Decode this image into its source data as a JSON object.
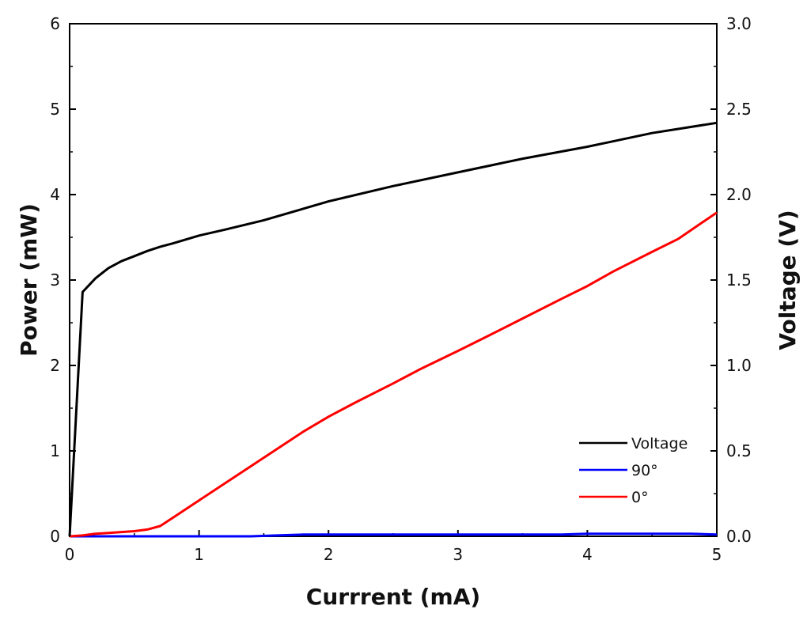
{
  "chart_data": {
    "type": "line",
    "xlabel": "Currrent (mA)",
    "ylabel_left": "Power (mW)",
    "ylabel_right": "Voltage (V)",
    "xlim": [
      0,
      5
    ],
    "ylim_left": [
      0,
      6
    ],
    "ylim_right": [
      0,
      3.0
    ],
    "x_ticks": [
      "0",
      "1",
      "2",
      "3",
      "4",
      "5"
    ],
    "y_left_ticks": [
      "0",
      "1",
      "2",
      "3",
      "4",
      "5",
      "6"
    ],
    "y_right_ticks": [
      "0.0",
      "0.5",
      "1.0",
      "1.5",
      "2.0",
      "2.5",
      "3.0"
    ],
    "grid": false,
    "legend_position": "bottom-right",
    "series": [
      {
        "name": "Voltage",
        "axis": "right",
        "color": "#000000",
        "x": [
          0,
          0.1,
          0.2,
          0.3,
          0.4,
          0.5,
          0.6,
          0.7,
          0.8,
          1.0,
          1.2,
          1.5,
          2.0,
          2.5,
          3.0,
          3.5,
          4.0,
          4.5,
          5.0
        ],
        "y": [
          0.0,
          1.43,
          1.51,
          1.57,
          1.61,
          1.64,
          1.67,
          1.695,
          1.715,
          1.76,
          1.795,
          1.85,
          1.96,
          2.05,
          2.13,
          2.21,
          2.28,
          2.36,
          2.42
        ]
      },
      {
        "name": "90°",
        "axis": "left",
        "color": "#0000ff",
        "x": [
          0,
          0.2,
          0.4,
          0.6,
          0.8,
          1.0,
          1.2,
          1.4,
          1.6,
          1.8,
          2.0,
          2.2,
          2.4,
          2.6,
          2.8,
          3.0,
          3.2,
          3.4,
          3.6,
          3.8,
          4.0,
          4.2,
          4.4,
          4.6,
          4.8,
          5.0
        ],
        "y": [
          0.0,
          0.0,
          0.0,
          0.0,
          0.0,
          0.0,
          0.0,
          0.0,
          0.01,
          0.02,
          0.02,
          0.02,
          0.02,
          0.02,
          0.02,
          0.02,
          0.02,
          0.02,
          0.02,
          0.02,
          0.03,
          0.03,
          0.03,
          0.03,
          0.03,
          0.02
        ]
      },
      {
        "name": "0°",
        "axis": "left",
        "color": "#ff0000",
        "x": [
          0,
          0.1,
          0.2,
          0.3,
          0.4,
          0.5,
          0.6,
          0.7,
          0.8,
          1.0,
          1.2,
          1.5,
          1.8,
          2.0,
          2.2,
          2.5,
          2.7,
          3.0,
          3.2,
          3.5,
          3.8,
          4.0,
          4.2,
          4.5,
          4.7,
          5.0
        ],
        "y": [
          0.0,
          0.01,
          0.03,
          0.04,
          0.05,
          0.06,
          0.08,
          0.12,
          0.22,
          0.42,
          0.62,
          0.92,
          1.22,
          1.4,
          1.56,
          1.79,
          1.95,
          2.17,
          2.32,
          2.55,
          2.78,
          2.93,
          3.1,
          3.33,
          3.48,
          3.79
        ]
      }
    ]
  }
}
